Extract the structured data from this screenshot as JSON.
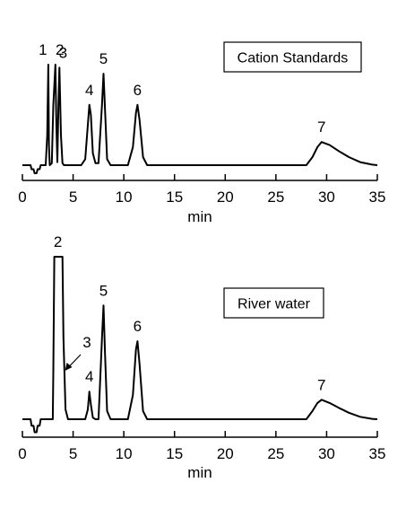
{
  "chart_data": [
    {
      "type": "line",
      "title": "",
      "xlabel": "min",
      "ylabel": "",
      "xlim": [
        0,
        35
      ],
      "xticks": [
        0,
        5,
        10,
        15,
        20,
        25,
        30,
        35
      ],
      "grid": false,
      "legend_box": "Cation Standards",
      "series": [
        {
          "x": [
            0,
            0.8,
            0.9,
            1.1,
            1.2,
            1.4,
            1.5,
            1.7,
            1.8,
            2.0,
            2.3,
            2.45,
            2.55,
            2.62,
            2.7,
            2.9,
            3.05,
            3.25,
            3.35,
            3.45,
            3.55,
            3.65,
            3.8,
            3.95,
            4.1,
            5.8,
            6.2,
            6.45,
            6.6,
            6.75,
            6.95,
            7.2,
            7.5,
            7.85,
            8.0,
            8.15,
            8.35,
            8.7,
            10.4,
            10.9,
            11.2,
            11.35,
            11.55,
            11.9,
            12.3,
            28.0,
            28.6,
            29.1,
            29.5,
            30.3,
            31.2,
            32.2,
            33.3,
            34.5,
            35.0
          ],
          "y": [
            0,
            0,
            -0.04,
            -0.04,
            -0.08,
            -0.08,
            -0.04,
            -0.04,
            0,
            0,
            0,
            0.3,
            1.0,
            0.2,
            0,
            0.02,
            0.6,
            1.0,
            0.4,
            0.03,
            0.6,
            0.97,
            0.3,
            0.02,
            0,
            0,
            0.06,
            0.4,
            0.6,
            0.5,
            0.12,
            0.02,
            0.02,
            0.6,
            0.91,
            0.55,
            0.06,
            0,
            0,
            0.18,
            0.52,
            0.6,
            0.45,
            0.08,
            0,
            0,
            0.08,
            0.18,
            0.23,
            0.2,
            0.14,
            0.08,
            0.03,
            0.005,
            0
          ]
        }
      ],
      "peak_labels": [
        {
          "text": "1",
          "x": 2.55,
          "y": 1.0
        },
        {
          "text": "2",
          "x": 3.25,
          "y": 1.0
        },
        {
          "text": "3",
          "x": 3.65,
          "y": 0.97
        },
        {
          "text": "4",
          "x": 6.6,
          "y": 0.6
        },
        {
          "text": "5",
          "x": 8.0,
          "y": 0.91
        },
        {
          "text": "6",
          "x": 11.35,
          "y": 0.6
        },
        {
          "text": "7",
          "x": 29.5,
          "y": 0.23
        }
      ]
    },
    {
      "type": "line",
      "title": "",
      "xlabel": "min",
      "ylabel": "",
      "xlim": [
        0,
        35
      ],
      "xticks": [
        0,
        5,
        10,
        15,
        20,
        25,
        30,
        35
      ],
      "grid": false,
      "legend_box": "River water",
      "series": [
        {
          "x": [
            0,
            0.8,
            0.9,
            1.1,
            1.2,
            1.4,
            1.5,
            1.7,
            1.8,
            2.0,
            3.0,
            3.05,
            3.15,
            3.95,
            4.05,
            4.25,
            4.5,
            6.2,
            6.45,
            6.6,
            6.75,
            6.95,
            7.2,
            7.5,
            7.85,
            8.0,
            8.15,
            8.35,
            8.7,
            10.4,
            10.9,
            11.2,
            11.35,
            11.55,
            11.9,
            12.3,
            28.0,
            28.6,
            29.1,
            29.5,
            30.3,
            31.2,
            32.2,
            33.3,
            34.5,
            35.0
          ],
          "y": [
            0,
            0,
            -0.04,
            -0.04,
            -0.08,
            -0.08,
            -0.04,
            -0.04,
            0,
            0,
            0,
            0.3,
            1.0,
            1.0,
            0.5,
            0.06,
            0,
            0,
            0.06,
            0.17,
            0.09,
            0.01,
            0,
            0,
            0.5,
            0.7,
            0.4,
            0.05,
            0,
            0,
            0.15,
            0.43,
            0.48,
            0.34,
            0.05,
            0,
            0,
            0.05,
            0.1,
            0.12,
            0.1,
            0.07,
            0.04,
            0.015,
            0.002,
            0
          ]
        }
      ],
      "peak_labels": [
        {
          "text": "2",
          "x": 3.5,
          "y": 1.0
        },
        {
          "text": "4",
          "x": 6.6,
          "y": 0.17
        },
        {
          "text": "5",
          "x": 8.0,
          "y": 0.7
        },
        {
          "text": "6",
          "x": 11.35,
          "y": 0.48
        },
        {
          "text": "7",
          "x": 29.5,
          "y": 0.12
        }
      ],
      "annotation": {
        "text": "3",
        "arrow_to_x": 4.2
      }
    }
  ]
}
